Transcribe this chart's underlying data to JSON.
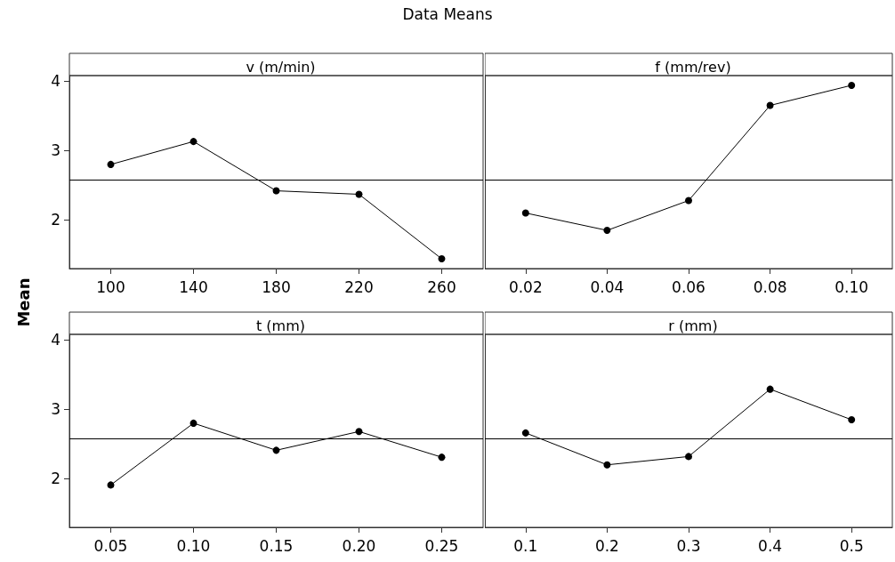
{
  "chart_data": [
    {
      "type": "line",
      "title": "v (m/min)",
      "ylabel": "Mean",
      "annotations": [
        "Data Means"
      ],
      "categories": [
        "100",
        "140",
        "180",
        "220",
        "260"
      ],
      "series": [
        {
          "color": "#000000",
          "values": [
            2.8,
            3.13,
            2.42,
            2.37,
            1.44
          ]
        }
      ],
      "ylim": [
        1.3,
        4.08
      ],
      "yticks": [
        2,
        3,
        4
      ],
      "ref_lines": [
        {
          "axis": "y",
          "value": 2.58,
          "color": "#000000"
        }
      ],
      "marker": "circle"
    },
    {
      "type": "line",
      "title": "f (mm/rev)",
      "categories": [
        "0.02",
        "0.04",
        "0.06",
        "0.08",
        "0.10"
      ],
      "series": [
        {
          "color": "#000000",
          "values": [
            2.1,
            1.85,
            2.28,
            3.65,
            3.94
          ]
        }
      ],
      "ylim": [
        1.3,
        4.08
      ],
      "tick_labels": "x",
      "ref_lines": [
        {
          "axis": "y",
          "value": 2.58,
          "color": "#000000"
        }
      ],
      "marker": "circle"
    },
    {
      "type": "line",
      "title": "t (mm)",
      "categories": [
        "0.05",
        "0.10",
        "0.15",
        "0.20",
        "0.25"
      ],
      "series": [
        {
          "color": "#000000",
          "values": [
            1.91,
            2.8,
            2.41,
            2.68,
            2.31
          ]
        }
      ],
      "ylim": [
        1.3,
        4.08
      ],
      "yticks": [
        2,
        3,
        4
      ],
      "ref_lines": [
        {
          "axis": "y",
          "value": 2.58,
          "color": "#000000"
        }
      ],
      "marker": "circle"
    },
    {
      "type": "line",
      "title": "r (mm)",
      "categories": [
        "0.1",
        "0.2",
        "0.3",
        "0.4",
        "0.5"
      ],
      "series": [
        {
          "color": "#000000",
          "values": [
            2.66,
            2.2,
            2.32,
            3.29,
            2.85
          ]
        }
      ],
      "ylim": [
        1.3,
        4.08
      ],
      "tick_labels": "x",
      "ref_lines": [
        {
          "axis": "y",
          "value": 2.58,
          "color": "#000000"
        }
      ],
      "marker": "circle"
    }
  ]
}
